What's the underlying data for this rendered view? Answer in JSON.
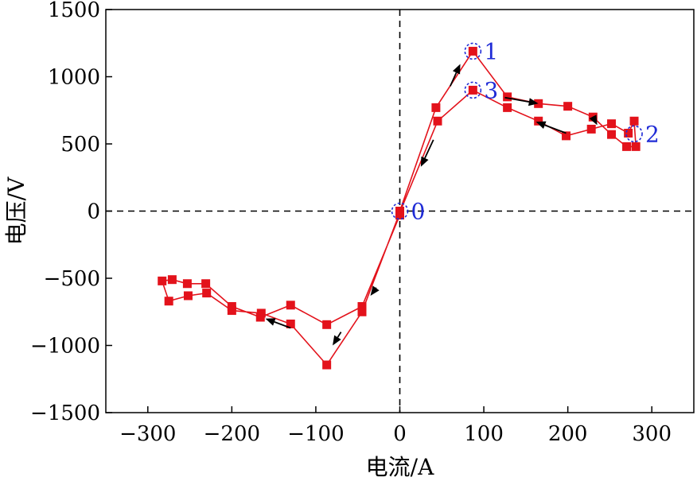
{
  "chart_data": {
    "type": "scatter",
    "xlabel": "电流/A",
    "ylabel": "电压/V",
    "xlim": [
      -350,
      350
    ],
    "ylim": [
      -1500,
      1500
    ],
    "xticks": [
      -300,
      -200,
      -100,
      0,
      100,
      200,
      300
    ],
    "yticks": [
      -1500,
      -1000,
      -500,
      0,
      500,
      1000,
      1500
    ],
    "x_tick_labels": [
      "−300",
      "−200",
      "−100",
      "0",
      "100",
      "200",
      "300"
    ],
    "y_tick_labels": [
      "−1500",
      "−1000",
      "−500",
      "0",
      "500",
      "1000",
      "1500"
    ],
    "grid": false,
    "reference_lines": [
      {
        "axis": "x",
        "value": 0,
        "style": "dashed"
      },
      {
        "axis": "y",
        "value": 0,
        "style": "dashed"
      }
    ],
    "series": [
      {
        "color": "#e3121b",
        "marker": "square",
        "points": [
          [
            0,
            0
          ],
          [
            43,
            770
          ],
          [
            87,
            1190
          ],
          [
            128,
            850
          ],
          [
            165,
            800
          ],
          [
            200,
            780
          ],
          [
            230,
            700
          ],
          [
            252,
            570
          ],
          [
            270,
            480
          ],
          [
            281,
            480
          ],
          [
            279,
            670
          ],
          [
            272,
            580
          ],
          [
            252,
            650
          ],
          [
            228,
            610
          ],
          [
            198,
            560
          ],
          [
            165,
            670
          ],
          [
            128,
            770
          ],
          [
            87,
            900
          ],
          [
            45,
            670
          ],
          [
            0,
            -10
          ],
          [
            -45,
            -750
          ],
          [
            -87,
            -1145
          ],
          [
            -130,
            -840
          ],
          [
            -165,
            -760
          ],
          [
            -200,
            -740
          ],
          [
            -230,
            -610
          ],
          [
            -252,
            -630
          ],
          [
            -275,
            -670
          ],
          [
            -283,
            -520
          ],
          [
            -271,
            -510
          ],
          [
            -253,
            -540
          ],
          [
            -231,
            -540
          ],
          [
            -200,
            -710
          ],
          [
            -166,
            -790
          ],
          [
            -130,
            -700
          ],
          [
            -87,
            -845
          ],
          [
            -45,
            -710
          ],
          [
            0,
            -30
          ]
        ]
      }
    ],
    "annotations": [
      {
        "text": "0",
        "x": 0,
        "y": 0
      },
      {
        "text": "1",
        "x": 87,
        "y": 1190
      },
      {
        "text": "2",
        "x": 279,
        "y": 575
      },
      {
        "text": "3",
        "x": 87,
        "y": 900
      }
    ],
    "arrows": [
      {
        "from": [
          60,
          930
        ],
        "to": [
          72,
          1095
        ]
      },
      {
        "from": [
          40,
          530
        ],
        "to": [
          25,
          330
        ]
      },
      {
        "from": [
          -28,
          -570
        ],
        "to": [
          -35,
          -630
        ]
      },
      {
        "from": [
          -70,
          -900
        ],
        "to": [
          -80,
          -1000
        ]
      },
      {
        "from": [
          -130,
          -870
        ],
        "to": [
          -160,
          -800
        ]
      },
      {
        "from": [
          125,
          845
        ],
        "to": [
          165,
          800
        ]
      },
      {
        "from": [
          230,
          700
        ],
        "to": [
          235,
          640
        ]
      },
      {
        "from": [
          198,
          580
        ],
        "to": [
          162,
          665
        ]
      }
    ]
  }
}
